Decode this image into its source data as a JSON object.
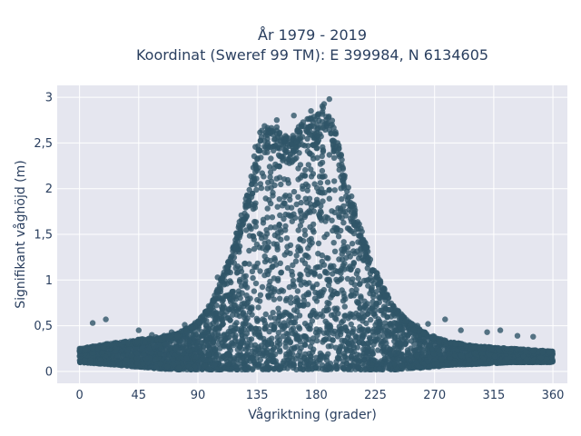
{
  "chart_data": {
    "type": "scatter",
    "title_lines": [
      "År 1979 - 2019",
      "Koordinat (Sweref 99 TM): E 399984, N 6134605"
    ],
    "xlabel": "Vågriktning (grader)",
    "ylabel": "Signifikant våghöjd (m)",
    "xlim": [
      -17,
      371
    ],
    "ylim": [
      -0.13,
      3.13
    ],
    "xticks": [
      0,
      45,
      90,
      135,
      180,
      225,
      270,
      315,
      360
    ],
    "xtick_labels": [
      "0",
      "45",
      "90",
      "135",
      "180",
      "225",
      "270",
      "315",
      "360"
    ],
    "yticks": [
      0,
      0.5,
      1,
      1.5,
      2,
      2.5,
      3
    ],
    "ytick_labels": [
      "0",
      "0,5",
      "1",
      "1,5",
      "2",
      "2,5",
      "3"
    ],
    "grid": true,
    "marker_color": "#2f5568",
    "plot_background": "#e5e6ef",
    "gridline_color": "#ffffff",
    "envelope": {
      "direction_deg": [
        0,
        20,
        45,
        60,
        75,
        90,
        100,
        110,
        120,
        130,
        135,
        140,
        150,
        160,
        170,
        180,
        185,
        190,
        195,
        200,
        210,
        220,
        230,
        240,
        250,
        260,
        270,
        280,
        300,
        330,
        360
      ],
      "upper_height_m": [
        0.25,
        0.3,
        0.35,
        0.38,
        0.42,
        0.55,
        0.75,
        1.1,
        1.55,
        2.1,
        2.6,
        2.7,
        2.7,
        2.55,
        2.75,
        2.8,
        2.95,
        2.9,
        2.65,
        2.3,
        1.75,
        1.3,
        0.95,
        0.7,
        0.55,
        0.45,
        0.38,
        0.33,
        0.28,
        0.25,
        0.22
      ],
      "lower_height_m": [
        0.1,
        0.08,
        0.05,
        0.03,
        0.02,
        0.02,
        0.02,
        0.02,
        0.02,
        0.02,
        0.02,
        0.02,
        0.02,
        0.02,
        0.02,
        0.02,
        0.02,
        0.02,
        0.02,
        0.02,
        0.02,
        0.02,
        0.02,
        0.02,
        0.03,
        0.04,
        0.05,
        0.07,
        0.08,
        0.1,
        0.1
      ]
    },
    "outliers": [
      {
        "x": 10,
        "y": 0.53
      },
      {
        "x": 20,
        "y": 0.57
      },
      {
        "x": 45,
        "y": 0.45
      },
      {
        "x": 55,
        "y": 0.4
      },
      {
        "x": 70,
        "y": 0.43
      },
      {
        "x": 80,
        "y": 0.51
      },
      {
        "x": 85,
        "y": 0.48
      },
      {
        "x": 100,
        "y": 0.69
      },
      {
        "x": 105,
        "y": 1.03
      },
      {
        "x": 110,
        "y": 0.95
      },
      {
        "x": 237,
        "y": 0.6
      },
      {
        "x": 248,
        "y": 0.55
      },
      {
        "x": 257,
        "y": 0.5
      },
      {
        "x": 265,
        "y": 0.52
      },
      {
        "x": 278,
        "y": 0.57
      },
      {
        "x": 290,
        "y": 0.45
      },
      {
        "x": 310,
        "y": 0.43
      },
      {
        "x": 320,
        "y": 0.45
      },
      {
        "x": 333,
        "y": 0.39
      },
      {
        "x": 345,
        "y": 0.38
      },
      {
        "x": 150,
        "y": 2.75
      },
      {
        "x": 163,
        "y": 2.8
      },
      {
        "x": 176,
        "y": 2.85
      },
      {
        "x": 190,
        "y": 2.98
      }
    ]
  }
}
